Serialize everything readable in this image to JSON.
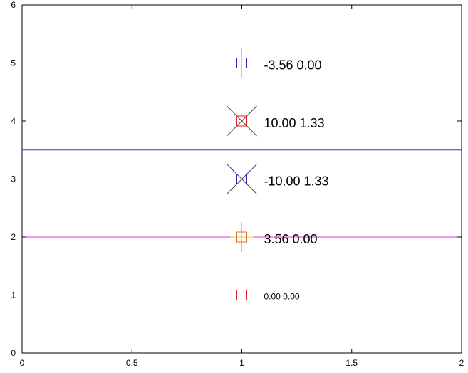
{
  "chart_data": {
    "type": "scatter",
    "title": "",
    "xlabel": "",
    "ylabel": "",
    "xlim": [
      0,
      2
    ],
    "ylim": [
      0,
      6
    ],
    "grid": false,
    "x_ticks": [
      "0",
      "0.5",
      "1",
      "1.5",
      "2"
    ],
    "y_ticks": [
      "0",
      "1",
      "2",
      "3",
      "4",
      "5",
      "6"
    ],
    "hlines": [
      {
        "y": 5.0,
        "color": "#20b2aa"
      },
      {
        "y": 3.5,
        "color": "#3333dd"
      },
      {
        "y": 2.0,
        "color": "#dd33dd"
      }
    ],
    "points": [
      {
        "x": 1,
        "y": 1,
        "square_color": "#dd2222",
        "cross": "none",
        "cross_color": "",
        "label": "0.00 0.00",
        "label_size": "small"
      },
      {
        "x": 1,
        "y": 2,
        "square_color": "#e07020",
        "cross": "plus",
        "cross_color": "#e8d040",
        "label": "3.56 0.00",
        "label_size": "large"
      },
      {
        "x": 1,
        "y": 3,
        "square_color": "#2222cc",
        "cross": "x",
        "cross_color": "#444444",
        "label": "-10.00 1.33",
        "label_size": "large"
      },
      {
        "x": 1,
        "y": 4,
        "square_color": "#dd2222",
        "cross": "x",
        "cross_color": "#444444",
        "label": "10.00 1.33",
        "label_size": "large"
      },
      {
        "x": 1,
        "y": 5,
        "square_color": "#2222cc",
        "cross": "plus",
        "cross_color": "#e8d040",
        "label": "-3.56 0.00",
        "label_size": "large"
      }
    ]
  }
}
